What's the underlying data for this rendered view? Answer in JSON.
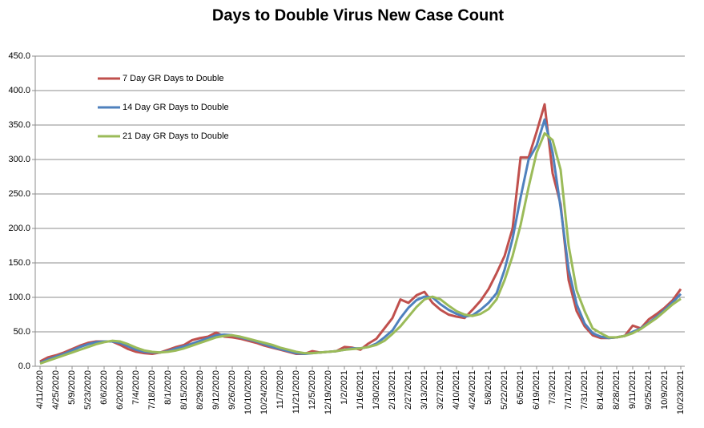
{
  "chart_data": {
    "type": "line",
    "title": "Days to Double Virus New Case Count",
    "grid": true,
    "ylim": [
      0,
      450
    ],
    "yticks": [
      {
        "value": 0,
        "label": "0.0"
      },
      {
        "value": 50,
        "label": "50.0"
      },
      {
        "value": 100,
        "label": "100.0"
      },
      {
        "value": 150,
        "label": "150.0"
      },
      {
        "value": 200,
        "label": "200.0"
      },
      {
        "value": 250,
        "label": "250.0"
      },
      {
        "value": 300,
        "label": "300.0"
      },
      {
        "value": 350,
        "label": "350.0"
      },
      {
        "value": 400,
        "label": "400.0"
      },
      {
        "value": 450,
        "label": "450.0"
      }
    ],
    "categories": [
      "4/11/2020",
      null,
      "4/25/2020",
      null,
      "5/9/2020",
      null,
      "5/23/2020",
      null,
      "6/6/2020",
      null,
      "6/20/2020",
      null,
      "7/4/2020",
      null,
      "7/18/2020",
      null,
      "8/1/2020",
      null,
      "8/15/2020",
      null,
      "8/29/2020",
      null,
      "9/12/2020",
      null,
      "9/26/2020",
      null,
      "10/10/2020",
      null,
      "10/24/2020",
      null,
      "11/7/2020",
      null,
      "11/21/2020",
      null,
      "12/5/2020",
      null,
      "12/19/2020",
      null,
      "1/2/2021",
      null,
      "1/16/2021",
      null,
      "1/30/2021",
      null,
      "2/13/2021",
      null,
      "2/27/2021",
      null,
      "3/13/2021",
      null,
      "3/27/2021",
      null,
      "4/10/2021",
      null,
      "4/24/2021",
      null,
      "5/8/2021",
      null,
      "5/22/2021",
      null,
      "6/5/2021",
      null,
      "6/19/2021",
      null,
      "7/3/2021",
      null,
      "7/17/2021",
      null,
      "7/31/2021",
      null,
      "8/14/2021",
      null,
      "8/28/2021",
      null,
      "9/11/2021",
      null,
      "9/25/2021",
      null,
      "10/9/2021",
      null,
      "10/23/2021"
    ],
    "series": [
      {
        "name": "7 Day GR Days to Double",
        "color": "#c0504d",
        "values": [
          7,
          13,
          16,
          20,
          25,
          30,
          34,
          36,
          36,
          36,
          31,
          25,
          21,
          19,
          18,
          20,
          24,
          28,
          31,
          38,
          41,
          43,
          49,
          43,
          42,
          40,
          37,
          34,
          30,
          27,
          24,
          21,
          18,
          18,
          22,
          20,
          21,
          22,
          28,
          27,
          24,
          33,
          40,
          55,
          70,
          97,
          92,
          103,
          108,
          92,
          82,
          75,
          72,
          70,
          82,
          95,
          112,
          135,
          160,
          200,
          303,
          303,
          340,
          380,
          280,
          235,
          125,
          80,
          58,
          45,
          41,
          41,
          42,
          44,
          59,
          55,
          68,
          76,
          85,
          96,
          112
        ]
      },
      {
        "name": "14 Day GR Days to Double",
        "color": "#4f81bd",
        "values": [
          5,
          10,
          14,
          18,
          23,
          28,
          32,
          35,
          36,
          36,
          34,
          29,
          24,
          21,
          20,
          20,
          22,
          26,
          29,
          33,
          37,
          41,
          45,
          46,
          45,
          42,
          39,
          36,
          32,
          28,
          25,
          22,
          19,
          18,
          19,
          20,
          21,
          22,
          24,
          26,
          26,
          28,
          33,
          42,
          52,
          70,
          85,
          96,
          101,
          100,
          90,
          82,
          76,
          72,
          74,
          82,
          92,
          106,
          140,
          185,
          245,
          300,
          320,
          358,
          310,
          230,
          140,
          90,
          62,
          48,
          43,
          41,
          42,
          44,
          50,
          55,
          63,
          72,
          82,
          93,
          105
        ]
      },
      {
        "name": "21 Day GR Days to Double",
        "color": "#9bbb59",
        "values": [
          4,
          8,
          12,
          16,
          20,
          24,
          28,
          32,
          35,
          37,
          36,
          32,
          27,
          23,
          21,
          20,
          21,
          23,
          26,
          30,
          34,
          38,
          42,
          44,
          45,
          43,
          40,
          37,
          34,
          31,
          27,
          24,
          21,
          19,
          19,
          20,
          21,
          22,
          24,
          25,
          26,
          28,
          31,
          37,
          47,
          58,
          72,
          86,
          97,
          101,
          97,
          88,
          80,
          75,
          73,
          76,
          83,
          97,
          125,
          160,
          205,
          260,
          310,
          338,
          328,
          285,
          175,
          110,
          80,
          55,
          48,
          42,
          42,
          44,
          48,
          54,
          62,
          70,
          80,
          90,
          98
        ]
      }
    ]
  }
}
